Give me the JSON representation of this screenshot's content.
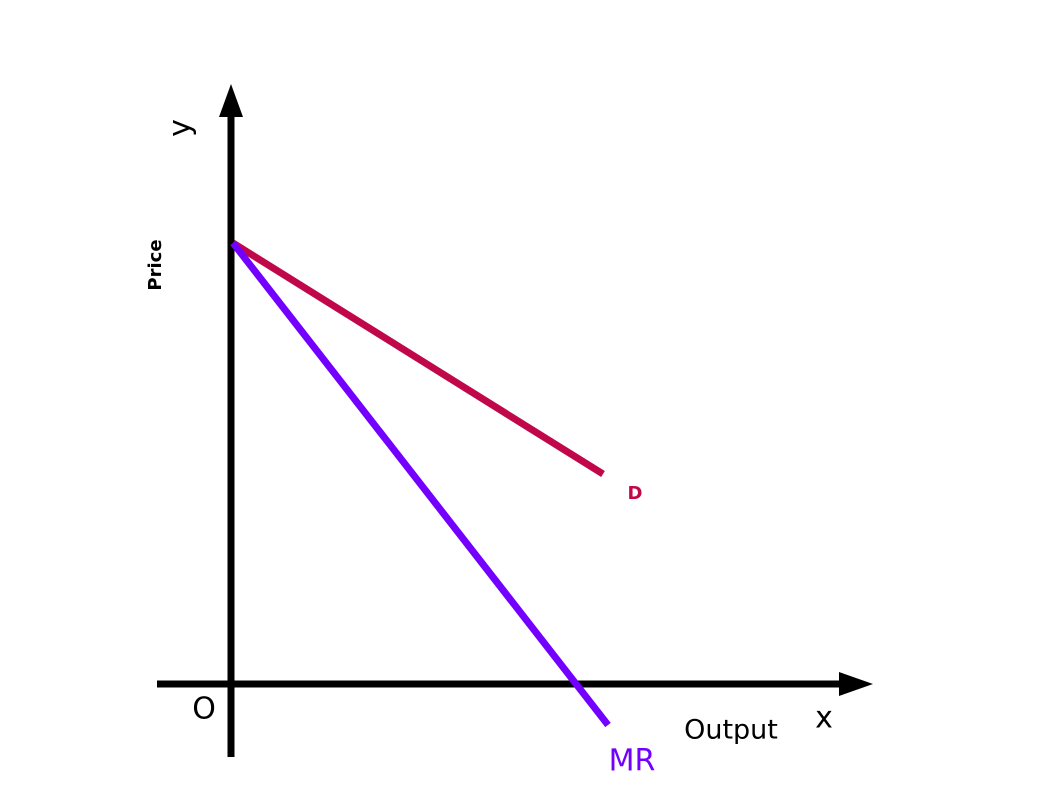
{
  "axes": {
    "y_label": "y",
    "y_title": "Price",
    "origin": "O",
    "x_title": "Output",
    "x_label": "x"
  },
  "curves": {
    "demand": "D",
    "marginal_revenue": "MR"
  }
}
